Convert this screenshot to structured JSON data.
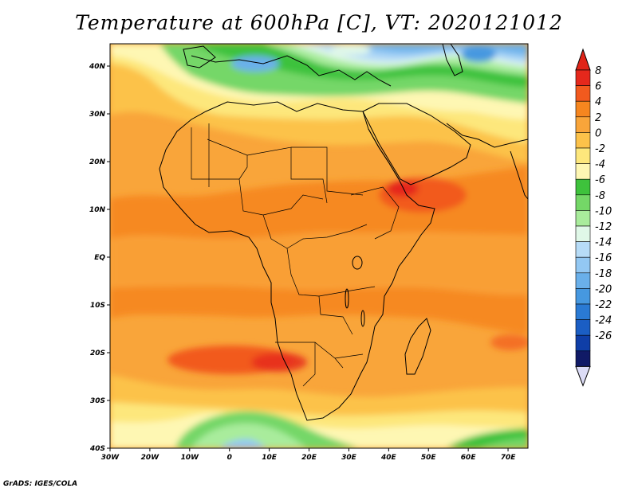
{
  "title": "Temperature at 600hPa [C], VT: 2020121012",
  "credit": "GrADS: IGES/COLA",
  "map": {
    "lon_range": [
      -30,
      75
    ],
    "lat_range": [
      -40,
      45
    ],
    "x_ticks": [
      "30W",
      "20W",
      "10W",
      "0",
      "10E",
      "20E",
      "30E",
      "40E",
      "50E",
      "60E",
      "70E"
    ],
    "y_ticks": [
      "40N",
      "30N",
      "20N",
      "10N",
      "EQ",
      "10S",
      "20S",
      "30S",
      "40S"
    ]
  },
  "colorbar": {
    "levels": [
      "8",
      "6",
      "4",
      "2",
      "0",
      "-2",
      "-4",
      "-6",
      "-8",
      "-10",
      "-12",
      "-14",
      "-16",
      "-18",
      "-20",
      "-22",
      "-24",
      "-26"
    ],
    "colors": [
      "#e5281c",
      "#f25a1e",
      "#f6861f",
      "#f9a53a",
      "#fcc24a",
      "#fde77c",
      "#fef7b3",
      "#3ec23c",
      "#74d767",
      "#a9ec9c",
      "#e0f8e8",
      "#b7dcf7",
      "#93c8f3",
      "#6ab0ea",
      "#4698e0",
      "#2a7ad4",
      "#1b5ec4",
      "#0f3ea7",
      "#101a66"
    ],
    "top_color": "#e02418",
    "bottom_color": "#dcdcf6"
  },
  "colors": {
    "background": "#f9a53a",
    "warm_dark": "#f6861f",
    "hot": "#f25a1e",
    "light": "#fcc24a",
    "pale": "#fde77c",
    "green": "#3ec23c",
    "light_green": "#74d767",
    "blue": "#4698e0",
    "light_blue": "#93c8f3"
  }
}
